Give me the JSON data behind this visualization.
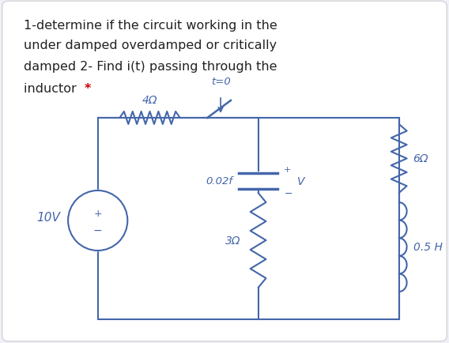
{
  "background_color": "#f0f0f8",
  "card_color": "#ffffff",
  "text_color": "#222222",
  "red_color": "#cc0000",
  "ink_color": "#4466aa",
  "title_lines": [
    "1-determine if the circuit working in the",
    "under damped overdamped or critically",
    "damped 2- Find i(t) passing through the",
    "inductor *"
  ],
  "circuit": {
    "resistor_top_label": "4Ω",
    "switch_label": "t=0",
    "capacitor_label": "0.02f",
    "resistor_right_label": "6Ω",
    "resistor_bottom_label": "3Ω",
    "inductor_label": "0.5 H",
    "source_label": "10V"
  }
}
